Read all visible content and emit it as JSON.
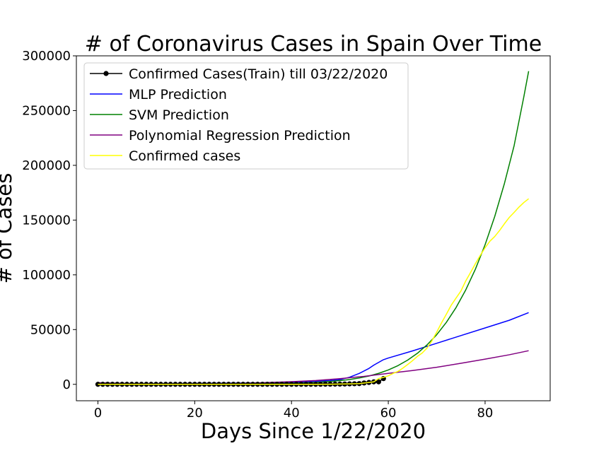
{
  "chart_data": {
    "type": "line",
    "title": "# of Coronavirus Cases in Spain Over Time",
    "xlabel": "Days Since 1/22/2020",
    "ylabel": "# of Cases",
    "xlim": [
      -4.45,
      93.45
    ],
    "ylim": [
      -15000,
      300000
    ],
    "xticks": [
      0,
      20,
      40,
      60,
      80
    ],
    "yticks": [
      0,
      50000,
      100000,
      150000,
      200000,
      250000,
      300000
    ],
    "grid": false,
    "legend_position": "upper-left",
    "series": [
      {
        "name": "Confirmed Cases(Train) till 03/22/2020",
        "color": "#000000",
        "marker": "circle",
        "x": [
          0,
          1,
          2,
          3,
          4,
          5,
          6,
          7,
          8,
          9,
          10,
          11,
          12,
          13,
          14,
          15,
          16,
          17,
          18,
          19,
          20,
          21,
          22,
          23,
          24,
          25,
          26,
          27,
          28,
          29,
          30,
          31,
          32,
          33,
          34,
          35,
          36,
          37,
          38,
          39,
          40,
          41,
          42,
          43,
          44,
          45,
          46,
          47,
          48,
          49,
          50,
          51,
          52,
          53,
          54,
          55,
          56,
          57,
          58,
          59
        ],
        "y": [
          0,
          0,
          0,
          0,
          0,
          0,
          0,
          0,
          0,
          1,
          1,
          1,
          1,
          1,
          1,
          1,
          1,
          2,
          2,
          2,
          2,
          2,
          2,
          2,
          2,
          2,
          2,
          2,
          2,
          2,
          2,
          2,
          2,
          2,
          2,
          2,
          2,
          2,
          2,
          2,
          2,
          2,
          2,
          2,
          2,
          13,
          45,
          84,
          120,
          165,
          228,
          282,
          401,
          525,
          674,
          1231,
          1695,
          2277,
          2277,
          5232
        ]
      },
      {
        "name": "MLP Prediction",
        "color": "#0000ff",
        "x": [
          0,
          10,
          20,
          30,
          35,
          40,
          45,
          48,
          50,
          52,
          54,
          56,
          57,
          58,
          59,
          60,
          65,
          70,
          75,
          80,
          85,
          89
        ],
        "y": [
          500,
          600,
          800,
          1100,
          1400,
          1900,
          2800,
          3500,
          4300,
          6500,
          10000,
          14500,
          17500,
          20000,
          22500,
          24000,
          30500,
          37500,
          44500,
          51500,
          58500,
          65500
        ]
      },
      {
        "name": "SVM Prediction",
        "color": "#008000",
        "x": [
          0,
          10,
          20,
          30,
          35,
          40,
          45,
          48,
          50,
          52,
          54,
          56,
          58,
          60,
          62,
          64,
          66,
          68,
          70,
          72,
          74,
          76,
          78,
          80,
          82,
          84,
          86,
          88,
          89
        ],
        "y": [
          0,
          0,
          100,
          300,
          600,
          1000,
          1800,
          2600,
          3400,
          4400,
          5800,
          7600,
          10000,
          13100,
          17100,
          22100,
          28300,
          36000,
          45300,
          56600,
          70100,
          86200,
          105200,
          127500,
          153400,
          183500,
          218000,
          262500,
          286000
        ]
      },
      {
        "name": "Polynomial Regression Prediction",
        "color": "#800080",
        "x": [
          0,
          10,
          20,
          30,
          40,
          45,
          50,
          55,
          60,
          65,
          70,
          75,
          80,
          85,
          89
        ],
        "y": [
          1500,
          300,
          -400,
          800,
          2400,
          3500,
          5200,
          7300,
          10000,
          12600,
          15600,
          19200,
          23000,
          27000,
          30700
        ]
      },
      {
        "name": "Confirmed cases",
        "color": "#ffff00",
        "x": [
          0,
          10,
          20,
          30,
          40,
          45,
          48,
          50,
          52,
          54,
          56,
          57,
          58,
          59,
          60,
          61,
          62,
          63,
          64,
          65,
          66,
          67,
          68,
          69,
          70,
          71,
          72,
          73,
          74,
          75,
          76,
          77,
          78,
          79,
          80,
          81,
          82,
          83,
          84,
          85,
          86,
          87,
          88,
          89
        ],
        "y": [
          0,
          1,
          2,
          2,
          2,
          13,
          120,
          228,
          401,
          674,
          1695,
          2277,
          5232,
          6391,
          7798,
          9942,
          11826,
          14769,
          18077,
          21571,
          25496,
          28572,
          33089,
          39673,
          47610,
          56188,
          64059,
          72248,
          78797,
          85195,
          94417,
          102136,
          110238,
          117710,
          124736,
          130759,
          135032,
          140510,
          146690,
          152446,
          157022,
          161852,
          166019,
          169496
        ]
      }
    ]
  }
}
